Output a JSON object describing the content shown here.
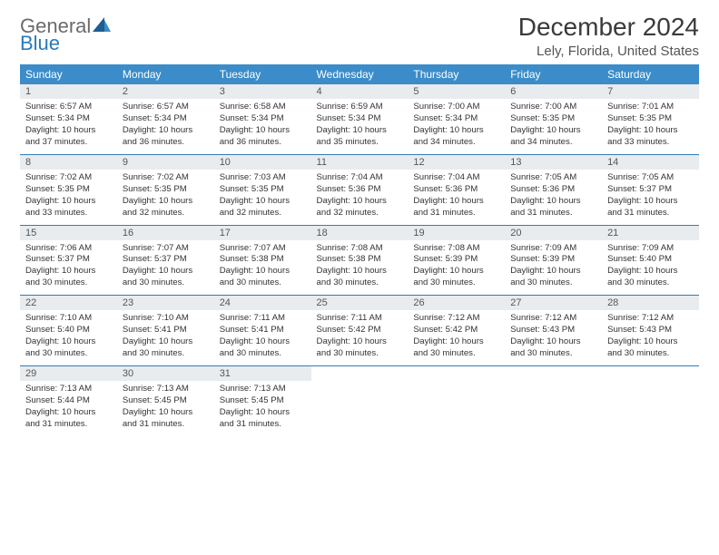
{
  "brand": {
    "general": "General",
    "blue": "Blue"
  },
  "title": "December 2024",
  "location": "Lely, Florida, United States",
  "colors": {
    "header_bg": "#3b8cc9",
    "header_text": "#ffffff",
    "daynum_bg": "#e9ecef",
    "row_divider": "#2f7db8",
    "logo_gray": "#6b6b6b",
    "logo_blue": "#2a7ab8",
    "body_text": "#333333"
  },
  "weekdays": [
    "Sunday",
    "Monday",
    "Tuesday",
    "Wednesday",
    "Thursday",
    "Friday",
    "Saturday"
  ],
  "weeks": [
    [
      {
        "n": "1",
        "sr": "Sunrise: 6:57 AM",
        "ss": "Sunset: 5:34 PM",
        "dl1": "Daylight: 10 hours",
        "dl2": "and 37 minutes."
      },
      {
        "n": "2",
        "sr": "Sunrise: 6:57 AM",
        "ss": "Sunset: 5:34 PM",
        "dl1": "Daylight: 10 hours",
        "dl2": "and 36 minutes."
      },
      {
        "n": "3",
        "sr": "Sunrise: 6:58 AM",
        "ss": "Sunset: 5:34 PM",
        "dl1": "Daylight: 10 hours",
        "dl2": "and 36 minutes."
      },
      {
        "n": "4",
        "sr": "Sunrise: 6:59 AM",
        "ss": "Sunset: 5:34 PM",
        "dl1": "Daylight: 10 hours",
        "dl2": "and 35 minutes."
      },
      {
        "n": "5",
        "sr": "Sunrise: 7:00 AM",
        "ss": "Sunset: 5:34 PM",
        "dl1": "Daylight: 10 hours",
        "dl2": "and 34 minutes."
      },
      {
        "n": "6",
        "sr": "Sunrise: 7:00 AM",
        "ss": "Sunset: 5:35 PM",
        "dl1": "Daylight: 10 hours",
        "dl2": "and 34 minutes."
      },
      {
        "n": "7",
        "sr": "Sunrise: 7:01 AM",
        "ss": "Sunset: 5:35 PM",
        "dl1": "Daylight: 10 hours",
        "dl2": "and 33 minutes."
      }
    ],
    [
      {
        "n": "8",
        "sr": "Sunrise: 7:02 AM",
        "ss": "Sunset: 5:35 PM",
        "dl1": "Daylight: 10 hours",
        "dl2": "and 33 minutes."
      },
      {
        "n": "9",
        "sr": "Sunrise: 7:02 AM",
        "ss": "Sunset: 5:35 PM",
        "dl1": "Daylight: 10 hours",
        "dl2": "and 32 minutes."
      },
      {
        "n": "10",
        "sr": "Sunrise: 7:03 AM",
        "ss": "Sunset: 5:35 PM",
        "dl1": "Daylight: 10 hours",
        "dl2": "and 32 minutes."
      },
      {
        "n": "11",
        "sr": "Sunrise: 7:04 AM",
        "ss": "Sunset: 5:36 PM",
        "dl1": "Daylight: 10 hours",
        "dl2": "and 32 minutes."
      },
      {
        "n": "12",
        "sr": "Sunrise: 7:04 AM",
        "ss": "Sunset: 5:36 PM",
        "dl1": "Daylight: 10 hours",
        "dl2": "and 31 minutes."
      },
      {
        "n": "13",
        "sr": "Sunrise: 7:05 AM",
        "ss": "Sunset: 5:36 PM",
        "dl1": "Daylight: 10 hours",
        "dl2": "and 31 minutes."
      },
      {
        "n": "14",
        "sr": "Sunrise: 7:05 AM",
        "ss": "Sunset: 5:37 PM",
        "dl1": "Daylight: 10 hours",
        "dl2": "and 31 minutes."
      }
    ],
    [
      {
        "n": "15",
        "sr": "Sunrise: 7:06 AM",
        "ss": "Sunset: 5:37 PM",
        "dl1": "Daylight: 10 hours",
        "dl2": "and 30 minutes."
      },
      {
        "n": "16",
        "sr": "Sunrise: 7:07 AM",
        "ss": "Sunset: 5:37 PM",
        "dl1": "Daylight: 10 hours",
        "dl2": "and 30 minutes."
      },
      {
        "n": "17",
        "sr": "Sunrise: 7:07 AM",
        "ss": "Sunset: 5:38 PM",
        "dl1": "Daylight: 10 hours",
        "dl2": "and 30 minutes."
      },
      {
        "n": "18",
        "sr": "Sunrise: 7:08 AM",
        "ss": "Sunset: 5:38 PM",
        "dl1": "Daylight: 10 hours",
        "dl2": "and 30 minutes."
      },
      {
        "n": "19",
        "sr": "Sunrise: 7:08 AM",
        "ss": "Sunset: 5:39 PM",
        "dl1": "Daylight: 10 hours",
        "dl2": "and 30 minutes."
      },
      {
        "n": "20",
        "sr": "Sunrise: 7:09 AM",
        "ss": "Sunset: 5:39 PM",
        "dl1": "Daylight: 10 hours",
        "dl2": "and 30 minutes."
      },
      {
        "n": "21",
        "sr": "Sunrise: 7:09 AM",
        "ss": "Sunset: 5:40 PM",
        "dl1": "Daylight: 10 hours",
        "dl2": "and 30 minutes."
      }
    ],
    [
      {
        "n": "22",
        "sr": "Sunrise: 7:10 AM",
        "ss": "Sunset: 5:40 PM",
        "dl1": "Daylight: 10 hours",
        "dl2": "and 30 minutes."
      },
      {
        "n": "23",
        "sr": "Sunrise: 7:10 AM",
        "ss": "Sunset: 5:41 PM",
        "dl1": "Daylight: 10 hours",
        "dl2": "and 30 minutes."
      },
      {
        "n": "24",
        "sr": "Sunrise: 7:11 AM",
        "ss": "Sunset: 5:41 PM",
        "dl1": "Daylight: 10 hours",
        "dl2": "and 30 minutes."
      },
      {
        "n": "25",
        "sr": "Sunrise: 7:11 AM",
        "ss": "Sunset: 5:42 PM",
        "dl1": "Daylight: 10 hours",
        "dl2": "and 30 minutes."
      },
      {
        "n": "26",
        "sr": "Sunrise: 7:12 AM",
        "ss": "Sunset: 5:42 PM",
        "dl1": "Daylight: 10 hours",
        "dl2": "and 30 minutes."
      },
      {
        "n": "27",
        "sr": "Sunrise: 7:12 AM",
        "ss": "Sunset: 5:43 PM",
        "dl1": "Daylight: 10 hours",
        "dl2": "and 30 minutes."
      },
      {
        "n": "28",
        "sr": "Sunrise: 7:12 AM",
        "ss": "Sunset: 5:43 PM",
        "dl1": "Daylight: 10 hours",
        "dl2": "and 30 minutes."
      }
    ],
    [
      {
        "n": "29",
        "sr": "Sunrise: 7:13 AM",
        "ss": "Sunset: 5:44 PM",
        "dl1": "Daylight: 10 hours",
        "dl2": "and 31 minutes."
      },
      {
        "n": "30",
        "sr": "Sunrise: 7:13 AM",
        "ss": "Sunset: 5:45 PM",
        "dl1": "Daylight: 10 hours",
        "dl2": "and 31 minutes."
      },
      {
        "n": "31",
        "sr": "Sunrise: 7:13 AM",
        "ss": "Sunset: 5:45 PM",
        "dl1": "Daylight: 10 hours",
        "dl2": "and 31 minutes."
      },
      null,
      null,
      null,
      null
    ]
  ]
}
